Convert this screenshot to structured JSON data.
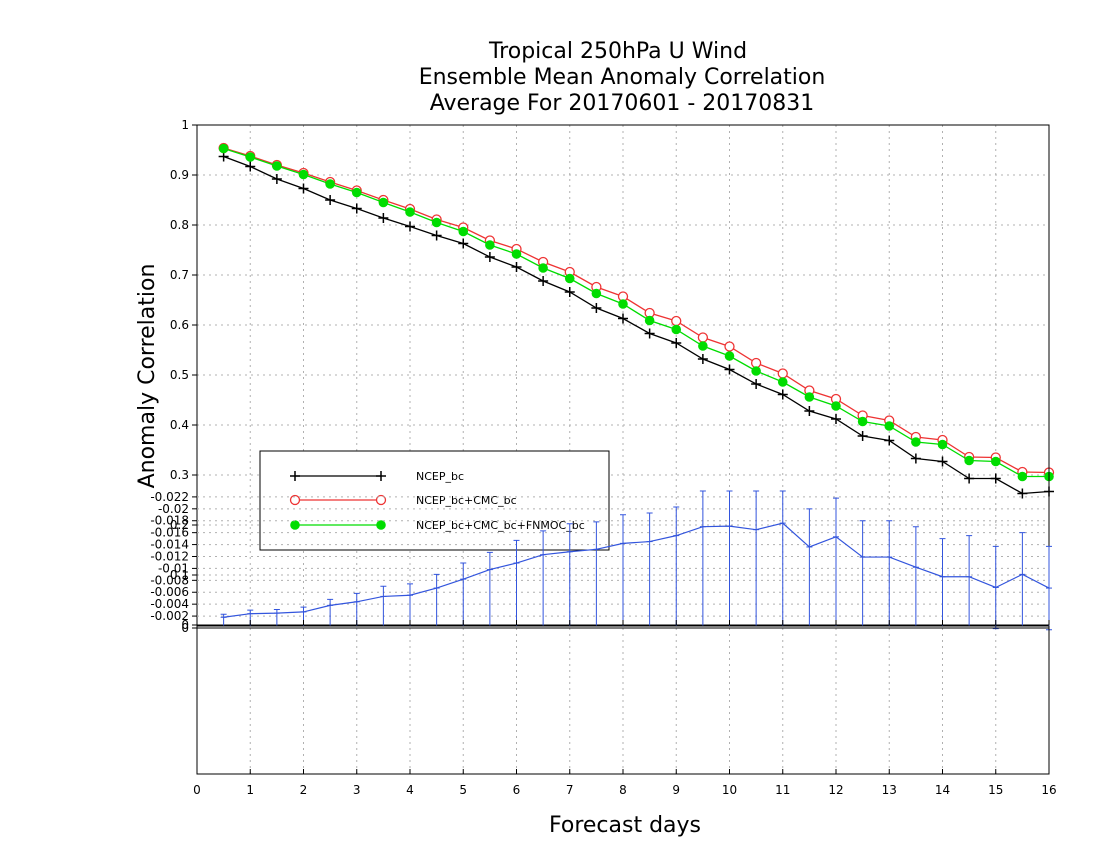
{
  "title_lines": [
    "Tropical 250hPa U Wind",
    "Ensemble Mean Anomaly Correlation",
    "Average For 20170601 - 20170831"
  ],
  "colors": {
    "ncep": "#000000",
    "ncep_cmc": "#ee3333",
    "ncep_cmc_fnmoc": "#00dd00",
    "diff": "#3355dd"
  },
  "chart_data": [
    {
      "type": "line",
      "title": "Tropical 250hPa U Wind Ensemble Mean Anomaly Correlation Average For 20170601 - 20170831",
      "xlabel": "Forecast days",
      "ylabel": "Anomaly Correlation",
      "xlim": [
        0,
        16
      ],
      "ylim": [
        0,
        1
      ],
      "grid": true,
      "legend_position": "lower-left",
      "x_ticks": [
        "0",
        "1",
        "2",
        "3",
        "4",
        "5",
        "6",
        "7",
        "8",
        "9",
        "10",
        "11",
        "12",
        "13",
        "14",
        "15",
        "16"
      ],
      "y_ticks": [
        "0",
        "0.1",
        "0.2",
        "0.3",
        "0.4",
        "0.5",
        "0.6",
        "0.7",
        "0.8",
        "0.9",
        "1"
      ],
      "x": [
        0.5,
        1,
        1.5,
        2,
        2.5,
        3,
        3.5,
        4,
        4.5,
        5,
        5.5,
        6,
        6.5,
        7,
        7.5,
        8,
        8.5,
        9,
        9.5,
        10,
        10.5,
        11,
        11.5,
        12,
        12.5,
        13,
        13.5,
        14,
        14.5,
        15,
        15.5,
        16
      ],
      "series": [
        {
          "name": "NCEP_bc",
          "marker": "plus",
          "values": [
            0.937,
            0.917,
            0.892,
            0.873,
            0.85,
            0.833,
            0.814,
            0.797,
            0.779,
            0.763,
            0.736,
            0.716,
            0.688,
            0.666,
            0.634,
            0.613,
            0.583,
            0.564,
            0.532,
            0.511,
            0.482,
            0.461,
            0.428,
            0.412,
            0.378,
            0.369,
            0.333,
            0.327,
            0.293,
            0.293,
            0.263,
            0.267
          ]
        },
        {
          "name": "NCEP_bc+CMC_bc",
          "marker": "open-circle",
          "values": [
            0.954,
            0.938,
            0.92,
            0.904,
            0.886,
            0.869,
            0.85,
            0.832,
            0.811,
            0.795,
            0.769,
            0.752,
            0.726,
            0.706,
            0.676,
            0.657,
            0.624,
            0.608,
            0.575,
            0.557,
            0.524,
            0.503,
            0.469,
            0.452,
            0.419,
            0.409,
            0.376,
            0.37,
            0.336,
            0.335,
            0.306,
            0.305
          ]
        },
        {
          "name": "NCEP_bc+CMC_bc+FNMOC_bc",
          "marker": "filled-circle",
          "values": [
            0.953,
            0.936,
            0.918,
            0.901,
            0.882,
            0.865,
            0.845,
            0.826,
            0.805,
            0.787,
            0.76,
            0.742,
            0.714,
            0.693,
            0.663,
            0.642,
            0.609,
            0.591,
            0.558,
            0.538,
            0.508,
            0.486,
            0.456,
            0.438,
            0.407,
            0.398,
            0.366,
            0.361,
            0.329,
            0.327,
            0.297,
            0.297
          ]
        }
      ]
    },
    {
      "type": "line",
      "title": "",
      "xlabel": "Forecast days",
      "ylabel": "",
      "xlim": [
        0,
        16
      ],
      "ylim": [
        -0.0245,
        0
      ],
      "grid": true,
      "x_ticks": [
        "0",
        "1",
        "2",
        "3",
        "4",
        "5",
        "6",
        "7",
        "8",
        "9",
        "10",
        "11",
        "12",
        "13",
        "14",
        "15",
        "16"
      ],
      "y_ticks": [
        "0",
        "-0.002",
        "-0.004",
        "-0.006",
        "-0.008",
        "-0.01",
        "-0.012",
        "-0.014",
        "-0.016",
        "-0.018",
        "-0.02",
        "-0.022"
      ],
      "x": [
        0.5,
        1,
        1.5,
        2,
        2.5,
        3,
        3.5,
        4,
        4.5,
        5,
        5.5,
        6,
        6.5,
        7,
        7.5,
        8,
        8.5,
        9,
        9.5,
        10,
        10.5,
        11,
        11.5,
        12,
        12.5,
        13,
        13.5,
        14,
        14.5,
        15,
        15.5,
        16
      ],
      "series": [
        {
          "name": "",
          "error_bars": true,
          "values": [
            -0.0018,
            -0.0024,
            -0.0025,
            -0.0027,
            -0.0038,
            -0.0044,
            -0.0053,
            -0.0055,
            -0.0067,
            -0.0082,
            -0.0098,
            -0.0109,
            -0.0123,
            -0.0128,
            -0.0132,
            -0.0142,
            -0.0145,
            -0.0155,
            -0.017,
            -0.0171,
            -0.0165,
            -0.0176,
            -0.0136,
            -0.0153,
            -0.0119,
            -0.0119,
            -0.0102,
            -0.0086,
            -0.0086,
            -0.0068,
            -0.009,
            -0.0067
          ],
          "error_low": [
            -0.0023,
            -0.003,
            -0.0031,
            -0.0035,
            -0.0048,
            -0.0058,
            -0.007,
            -0.0074,
            -0.009,
            -0.0109,
            -0.0127,
            -0.0147,
            -0.0163,
            -0.0175,
            -0.0178,
            -0.019,
            -0.0193,
            -0.0203,
            -0.023,
            -0.023,
            -0.023,
            -0.023,
            -0.02,
            -0.0218,
            -0.018,
            -0.018,
            -0.017,
            -0.015,
            -0.0155,
            -0.0137,
            -0.016,
            -0.0137
          ],
          "error_high": [
            -0.0013,
            -0.0018,
            -0.0019,
            -0.0019,
            -0.0028,
            -0.003,
            -0.0036,
            -0.0036,
            -0.0044,
            -0.0055,
            -0.0069,
            -0.0071,
            -0.0083,
            -0.0081,
            -0.0086,
            -0.0094,
            -0.0097,
            -0.0107,
            -0.011,
            -0.0112,
            -0.01,
            -0.0117,
            -0.0072,
            -0.0088,
            -0.0058,
            -0.0058,
            -0.0034,
            -0.0022,
            -0.0017,
            0.0001,
            -0.002,
            0.0003
          ]
        }
      ]
    }
  ]
}
